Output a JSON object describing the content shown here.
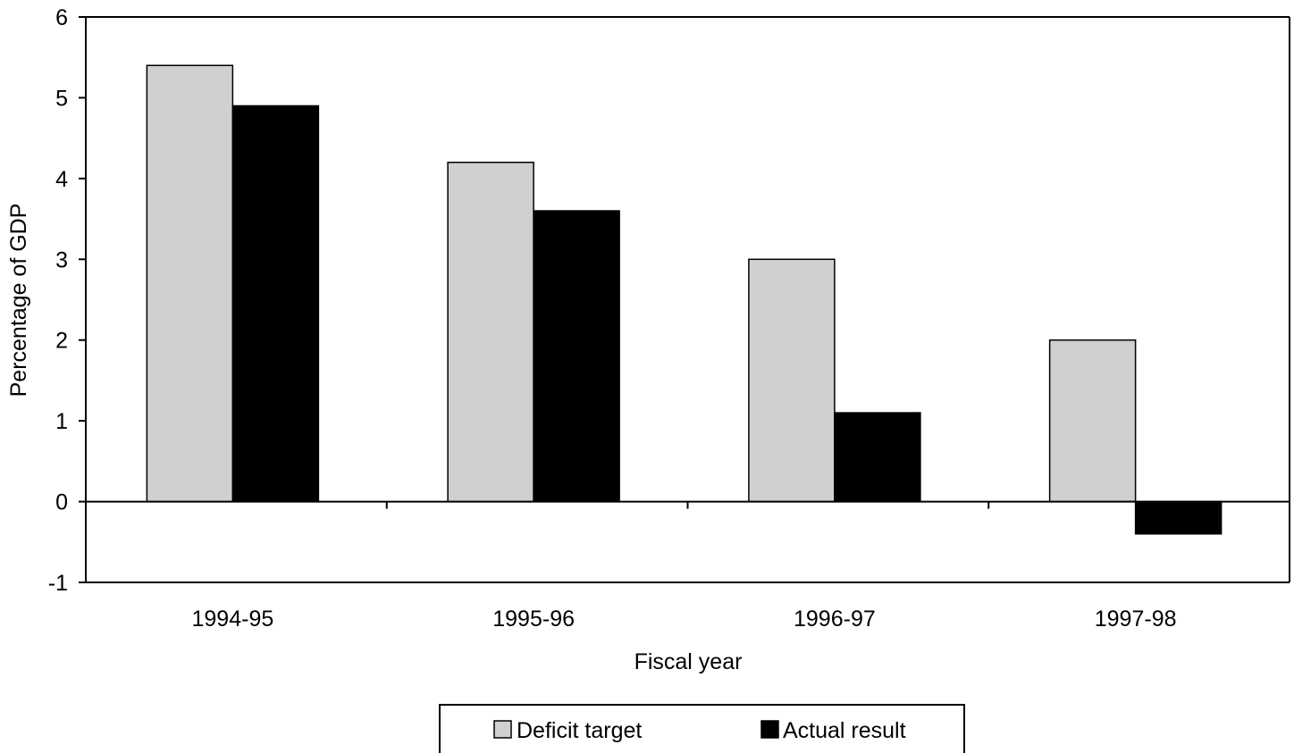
{
  "chart_data": {
    "type": "bar",
    "categories": [
      "1994-95",
      "1995-96",
      "1996-97",
      "1997-98"
    ],
    "series": [
      {
        "name": "Deficit target",
        "values": [
          5.4,
          4.2,
          3.0,
          2.0
        ],
        "color": "#d0d0d0"
      },
      {
        "name": "Actual result",
        "values": [
          4.9,
          3.6,
          1.1,
          -0.4
        ],
        "color": "#000000"
      }
    ],
    "title": "",
    "xlabel": "Fiscal year",
    "ylabel": "Percentage of GDP",
    "ylim": [
      -1,
      6
    ],
    "yticks": [
      "-1",
      "0",
      "1",
      "2",
      "3",
      "4",
      "5",
      "6"
    ],
    "grid": false,
    "legend_position": "bottom"
  }
}
